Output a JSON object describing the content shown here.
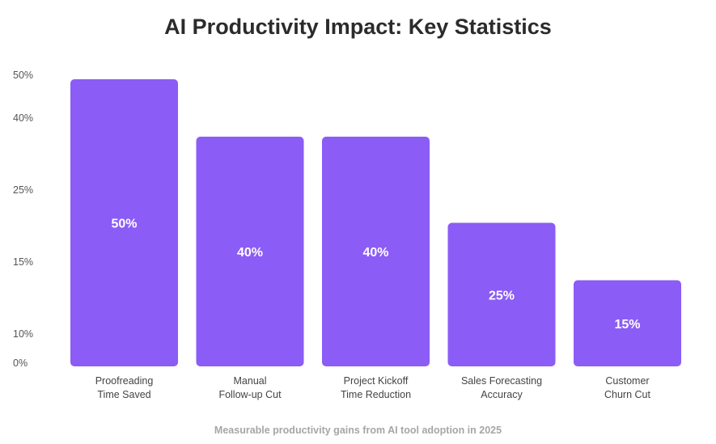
{
  "chart_data": {
    "type": "bar",
    "title": "AI Productivity Impact: Key Statistics",
    "subtitle": "Measurable productivity gains from AI tool adoption in 2025",
    "categories": [
      [
        "Proofreading",
        "Time Saved"
      ],
      [
        "Manual",
        "Follow-up Cut"
      ],
      [
        "Project Kickoff",
        "Time Reduction"
      ],
      [
        "Sales Forecasting",
        "Accuracy"
      ],
      [
        "Customer",
        "Churn Cut"
      ]
    ],
    "values": [
      50,
      40,
      40,
      25,
      15
    ],
    "value_labels": [
      "50%",
      "40%",
      "40%",
      "25%",
      "15%"
    ],
    "y_ticks": [
      0,
      10,
      15,
      25,
      40,
      50
    ],
    "y_tick_labels": [
      "0%",
      "10%",
      "15%",
      "25%",
      "40%",
      "50%"
    ],
    "ylim": [
      0,
      50
    ],
    "xlabel": "",
    "ylabel": "",
    "grid": false,
    "legend": "none",
    "colors": {
      "bar": "#8b5cf6",
      "bar_label": "#ffffff",
      "title": "#2b2b2b",
      "subtitle": "#a6a6a6"
    }
  }
}
